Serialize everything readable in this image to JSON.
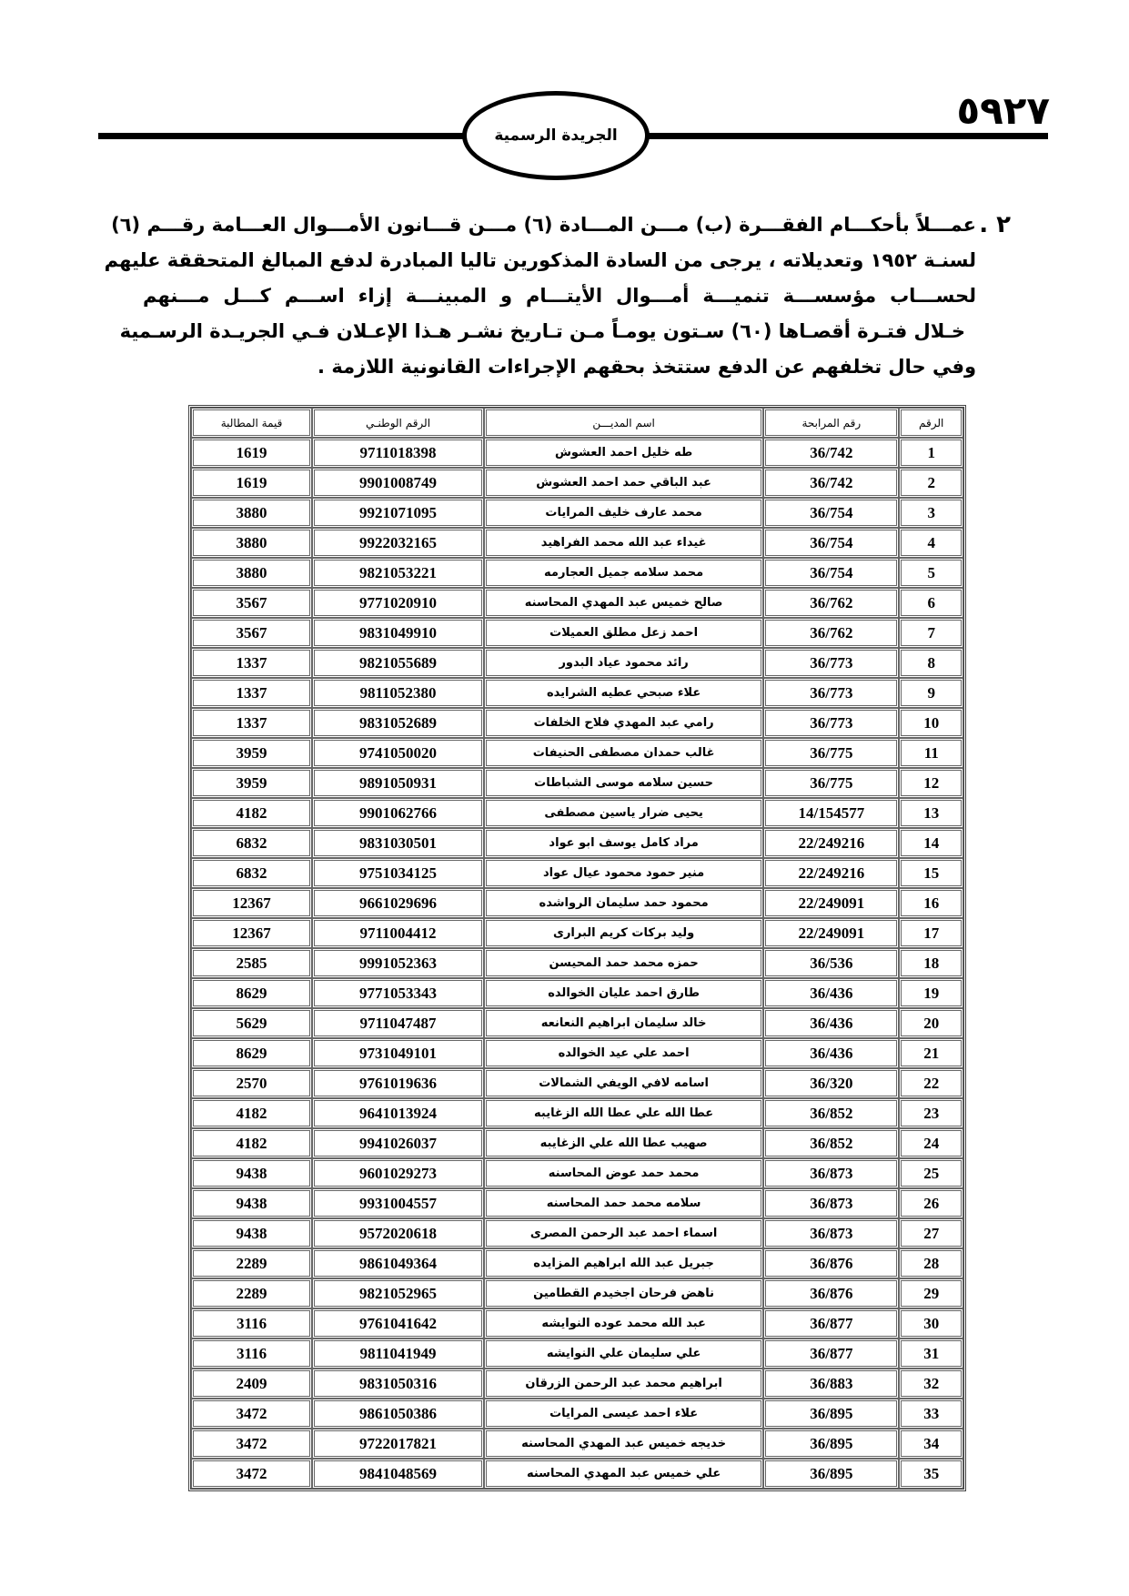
{
  "header": {
    "gazette_title": "الجريدة الرسمية",
    "page_number": "٥٩٢٧"
  },
  "notice": {
    "item_number": "٢ .",
    "lines": [
      "عمـــلاً بأحكـــام الفقـــرة (ب) مـــن المـــادة (٦) مـــن قـــانون الأمـــوال العـــامة رقـــم (٦)",
      "لسنـة ١٩٥٢ وتعديلاته ، يرجى من السادة المذكورين تاليا المبادرة لدفع المبالغ المتحققة عليهم",
      "لحســـاب مؤسســـة تنميـــة أمـــوال الأيتـــام و المبينـــة إزاء اســـم كـــل مـــنهم",
      "خـلال فتـرة أقصـاها (٦٠) سـتون يومـاً مـن تـاريخ نشـر هـذا الإعـلان فـي الجريـدة الرسـمية",
      "وفي حال تخلفهم عن الدفع ستتخذ بحقهم الإجراءات القانونية اللازمة ."
    ]
  },
  "table": {
    "columns": [
      "الرقم",
      "رقم المرابحة",
      "اسم المديـــن",
      "الرقم الوطنـي",
      "قيمة المطالبة"
    ],
    "rows": [
      [
        "1",
        "36/742",
        "طه خليل احمد العشوش",
        "9711018398",
        "1619"
      ],
      [
        "2",
        "36/742",
        "عبد الباقي حمد احمد العشوش",
        "9901008749",
        "1619"
      ],
      [
        "3",
        "36/754",
        "محمد عارف خليف المرايات",
        "9921071095",
        "3880"
      ],
      [
        "4",
        "36/754",
        "غيداء عبد الله محمد الفراهيد",
        "9922032165",
        "3880"
      ],
      [
        "5",
        "36/754",
        "محمد سلامه جميل العجارمه",
        "9821053221",
        "3880"
      ],
      [
        "6",
        "36/762",
        "صالح خميس عبد المهدي المحاسنه",
        "9771020910",
        "3567"
      ],
      [
        "7",
        "36/762",
        "احمد زعل مطلق العميلات",
        "9831049910",
        "3567"
      ],
      [
        "8",
        "36/773",
        "رائد محمود عياد البدور",
        "9821055689",
        "1337"
      ],
      [
        "9",
        "36/773",
        "علاء صبحي عطيه الشرايده",
        "9811052380",
        "1337"
      ],
      [
        "10",
        "36/773",
        "رامي عبد المهدي فلاح الخلفات",
        "9831052689",
        "1337"
      ],
      [
        "11",
        "36/775",
        "غالب حمدان مصطفى الحنيفات",
        "9741050020",
        "3959"
      ],
      [
        "12",
        "36/775",
        "حسين سلامه موسى الشباطات",
        "9891050931",
        "3959"
      ],
      [
        "13",
        "14/154577",
        "يحيى ضرار ياسين مصطفى",
        "9901062766",
        "4182"
      ],
      [
        "14",
        "22/249216",
        "مراد كامل يوسف ابو عواد",
        "9831030501",
        "6832"
      ],
      [
        "15",
        "22/249216",
        "منير حمود محمود عيال عواد",
        "9751034125",
        "6832"
      ],
      [
        "16",
        "22/249091",
        "محمود حمد سليمان الرواشده",
        "9661029696",
        "12367"
      ],
      [
        "17",
        "22/249091",
        "وليد بركات كريم البرارى",
        "9711004412",
        "12367"
      ],
      [
        "18",
        "36/536",
        "حمزه محمد حمد المحيسن",
        "9991052363",
        "2585"
      ],
      [
        "19",
        "36/436",
        "طارق احمد عليان الخوالده",
        "9771053343",
        "8629"
      ],
      [
        "20",
        "36/436",
        "خالد سليمان ابراهيم النعانعه",
        "9711047487",
        "5629"
      ],
      [
        "21",
        "36/436",
        "احمد علي عيد الخوالده",
        "9731049101",
        "8629"
      ],
      [
        "22",
        "36/320",
        "اسامه لافي الويفي الشمالات",
        "9761019636",
        "2570"
      ],
      [
        "23",
        "36/852",
        "عطا الله علي عطا الله الزغايبه",
        "9641013924",
        "4182"
      ],
      [
        "24",
        "36/852",
        "صهيب عطا الله علي الزغايبه",
        "9941026037",
        "4182"
      ],
      [
        "25",
        "36/873",
        "محمد حمد عوض المحاسنه",
        "9601029273",
        "9438"
      ],
      [
        "26",
        "36/873",
        "سلامه محمد حمد المحاسنه",
        "9931004557",
        "9438"
      ],
      [
        "27",
        "36/873",
        "اسماء احمد عبد الرحمن المصرى",
        "9572020618",
        "9438"
      ],
      [
        "28",
        "36/876",
        "جبريل عبد الله ابراهيم المزايده",
        "9861049364",
        "2289"
      ],
      [
        "29",
        "36/876",
        "ناهض فرحان اجخيدم القطامين",
        "9821052965",
        "2289"
      ],
      [
        "30",
        "36/877",
        "عبد الله محمد عوده النوايشه",
        "9761041642",
        "3116"
      ],
      [
        "31",
        "36/877",
        "علي سليمان علي النوايشه",
        "9811041949",
        "3116"
      ],
      [
        "32",
        "36/883",
        "ابراهيم محمد عبد الرحمن الزرقان",
        "9831050316",
        "2409"
      ],
      [
        "33",
        "36/895",
        "علاء احمد عيسى المرايات",
        "9861050386",
        "3472"
      ],
      [
        "34",
        "36/895",
        "خديجه خميس عبد المهدي المحاسنه",
        "9722017821",
        "3472"
      ],
      [
        "35",
        "36/895",
        "علي خميس عبد المهدي المحاسنه",
        "9841048569",
        "3472"
      ]
    ]
  }
}
